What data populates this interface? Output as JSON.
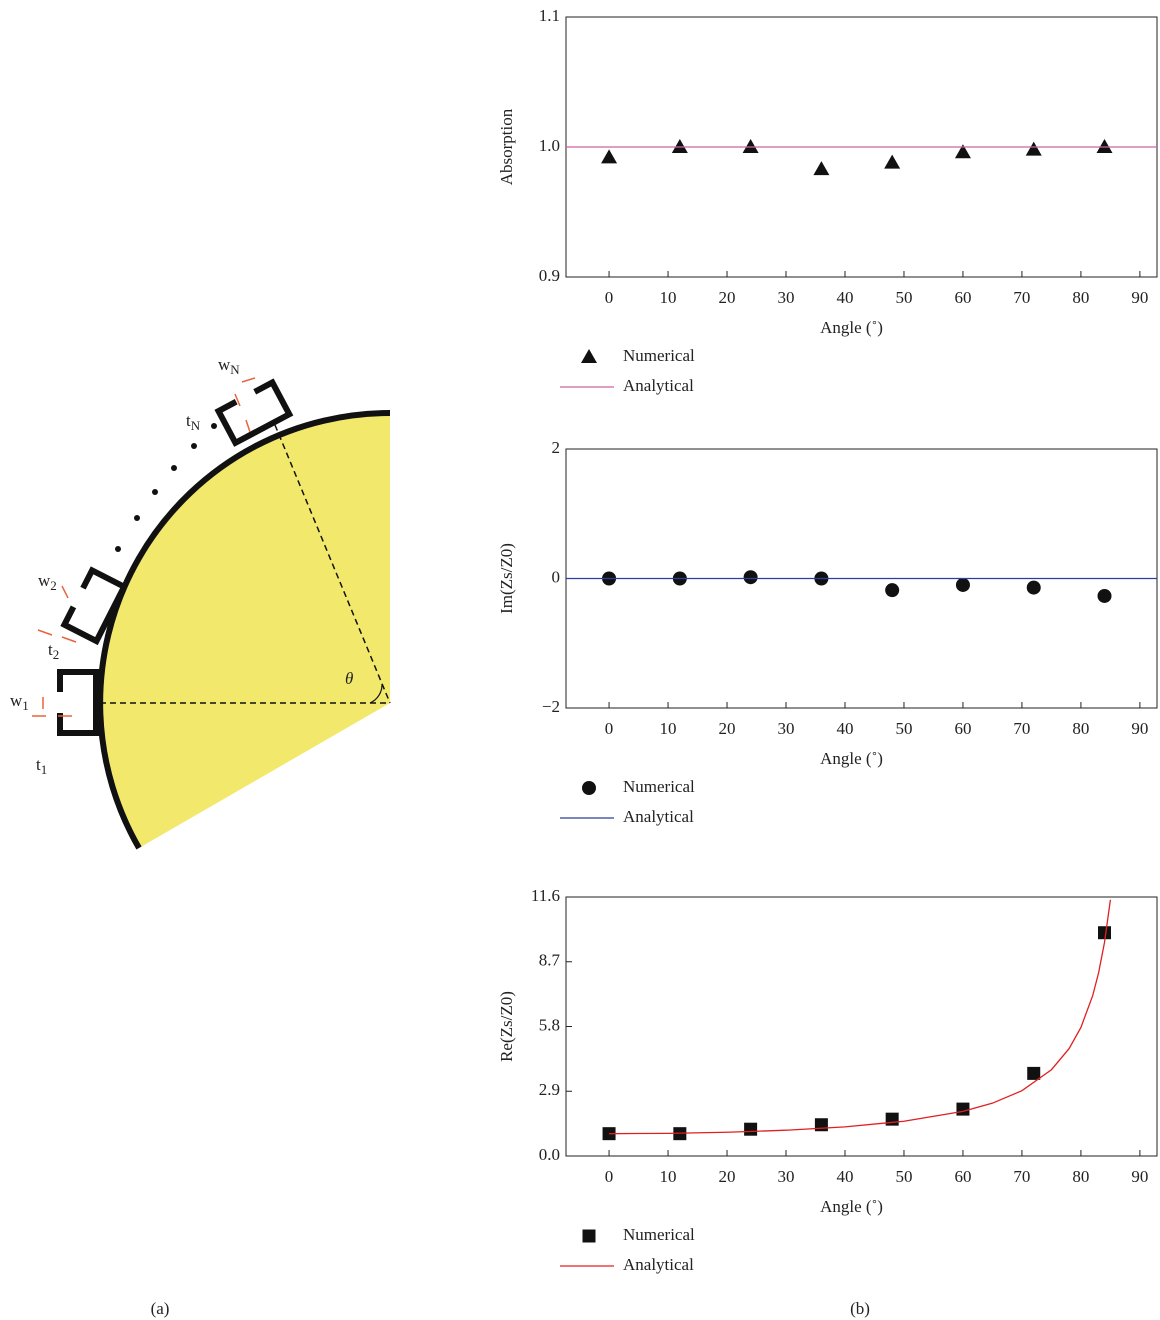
{
  "diagram": {
    "labels": [
      {
        "text": "w",
        "sub": "N"
      },
      {
        "text": "t",
        "sub": "N"
      },
      {
        "text": "w",
        "sub": "2"
      },
      {
        "text": "t",
        "sub": "2"
      },
      {
        "text": "w",
        "sub": "1"
      },
      {
        "text": "t",
        "sub": "1"
      },
      {
        "text": "θ",
        "sub": ""
      }
    ]
  },
  "captions": [
    "(a)",
    "(b)"
  ],
  "chart_data": [
    {
      "type": "scatter",
      "y_label": "Absorption",
      "x_label": "Angle (˚)",
      "xlim": [
        -7.3,
        92.9
      ],
      "xticks": [
        0,
        10,
        20,
        30,
        40,
        50,
        60,
        70,
        80,
        90
      ],
      "ylim": [
        0.9,
        1.1
      ],
      "yticks": [
        0.9,
        {
          "value": 1,
          "label": "1.0"
        },
        1.1
      ],
      "series": [
        {
          "name": "Numerical",
          "color": "#111111",
          "marker": "triangle",
          "x": [
            0,
            12,
            24,
            36,
            48,
            60,
            72,
            84
          ],
          "values": [
            0.992,
            1.0,
            1.0,
            0.983,
            0.988,
            0.996,
            0.998,
            1.0
          ]
        },
        {
          "name": "Analytical",
          "color": "#d061a8",
          "marker": "line",
          "x": [
            -7.3,
            92.9
          ],
          "values": [
            1,
            1
          ]
        }
      ]
    },
    {
      "type": "scatter",
      "y_label": "Im(Zs/Z0)",
      "x_label": "Angle (˚)",
      "xlim": [
        -7.3,
        92.9
      ],
      "xticks": [
        0,
        10,
        20,
        30,
        40,
        50,
        60,
        70,
        80,
        90
      ],
      "ylim": [
        -2,
        2
      ],
      "yticks": [
        {
          "value": -2,
          "label": "−2"
        },
        0,
        2
      ],
      "series": [
        {
          "name": "Numerical",
          "color": "#111111",
          "marker": "circle",
          "x": [
            0,
            12,
            24,
            36,
            48,
            60,
            72,
            84
          ],
          "values": [
            0,
            0,
            0.02,
            0,
            -0.18,
            -0.1,
            -0.14,
            -0.27
          ]
        },
        {
          "name": "Analytical",
          "color": "#2b3f9e",
          "marker": "line",
          "x": [
            -7.3,
            92.9
          ],
          "values": [
            0,
            0
          ]
        }
      ]
    },
    {
      "type": "scatter",
      "y_label": "Re(Zs/Z0)",
      "x_label": "Angle (˚)",
      "xlim": [
        -7.3,
        92.9
      ],
      "xticks": [
        0,
        10,
        20,
        30,
        40,
        50,
        60,
        70,
        80,
        90
      ],
      "ylim": [
        0,
        11.6
      ],
      "yticks": [
        {
          "value": 0,
          "label": "0.0"
        },
        2.9,
        5.8,
        8.7,
        11.6
      ],
      "series": [
        {
          "name": "Numerical",
          "color": "#111111",
          "marker": "square",
          "x": [
            0,
            12,
            24,
            36,
            48,
            60,
            72,
            84
          ],
          "values": [
            1.0,
            1.0,
            1.2,
            1.4,
            1.65,
            2.1,
            3.7,
            10.0
          ]
        },
        {
          "name": "Analytical",
          "color": "#e02020",
          "marker": "line",
          "x": [
            0,
            10,
            20,
            30,
            40,
            50,
            60,
            65,
            70,
            75,
            78,
            80,
            82,
            83,
            84,
            85
          ],
          "values": [
            1,
            1.015,
            1.064,
            1.155,
            1.305,
            1.556,
            2.0,
            2.366,
            2.924,
            3.864,
            4.81,
            5.759,
            7.185,
            8.206,
            9.567,
            11.474
          ]
        }
      ]
    }
  ]
}
